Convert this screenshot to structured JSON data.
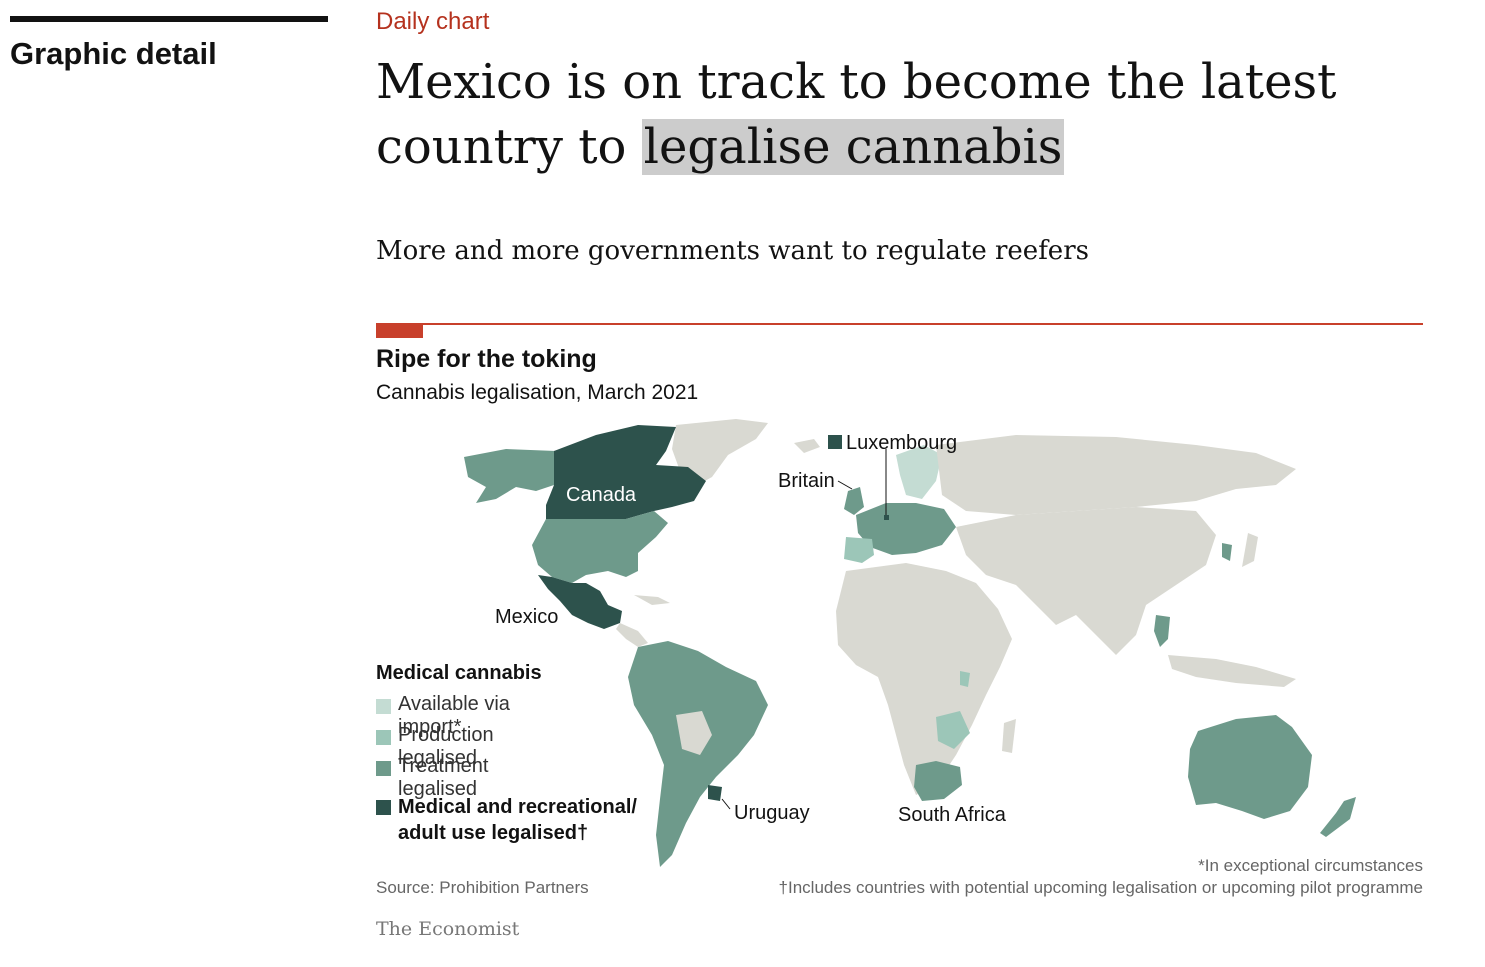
{
  "section": {
    "title": "Graphic detail"
  },
  "article": {
    "kicker": "Daily chart",
    "headline_line1": "Mexico is on track to become the latest",
    "headline_line2_prefix": "country to ",
    "headline_line2_highlight": "legalise cannabis",
    "subhead": "More and more governments want to regulate reefers"
  },
  "chart": {
    "title": "Ripe for the toking",
    "subtitle": "Cannabis legalisation, March 2021",
    "labels": {
      "luxembourg": "Luxembourg",
      "britain": "Britain",
      "canada": "Canada",
      "mexico": "Mexico",
      "uruguay": "Uruguay",
      "south_africa": "South Africa"
    },
    "legend": {
      "heading": "Medical cannabis",
      "items": [
        {
          "label": "Available via import*",
          "color": "#c4dcd3"
        },
        {
          "label": "Production legalised",
          "color": "#9cc6b8"
        },
        {
          "label": "Treatment legalised",
          "color": "#6e9a8b"
        }
      ],
      "strong_item": {
        "label": "Medical and recreational/ adult use legalised†",
        "color": "#2d524c"
      }
    },
    "colors": {
      "land": "#d9d9d2",
      "border": "#ffffff",
      "available": "#c4dcd3",
      "production": "#9cc6b8",
      "treatment": "#6e9a8b",
      "recreational": "#2d524c"
    },
    "footnote1": "*In exceptional circumstances",
    "footnote2": "†Includes countries with potential upcoming legalisation or upcoming pilot programme",
    "source": "Source: Prohibition Partners",
    "brand": "The Economist"
  }
}
